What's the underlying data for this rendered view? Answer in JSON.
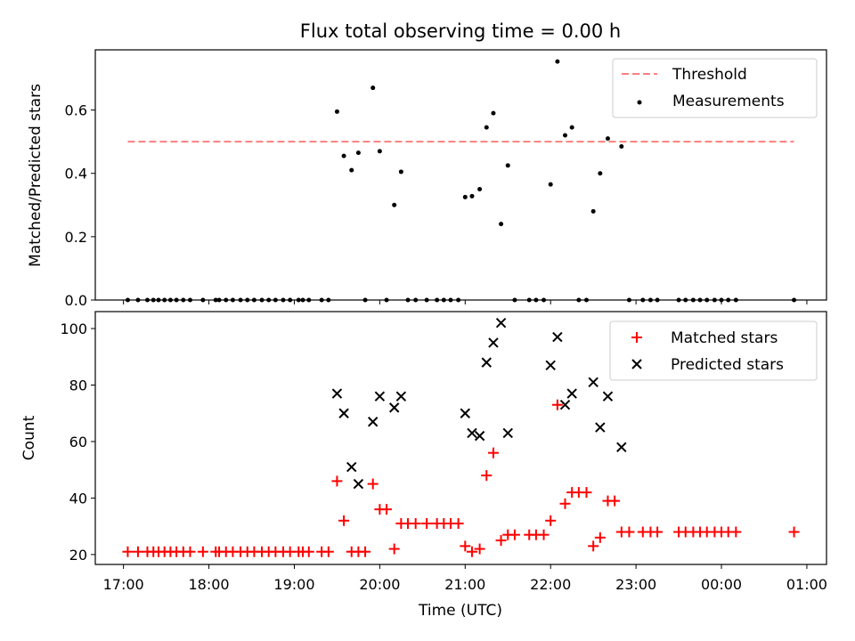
{
  "chart_data": [
    {
      "type": "scatter",
      "title": "Flux total observing time = 0.00 h",
      "ylabel": "Matched/Predicted stars",
      "ylim": [
        0,
        0.79
      ],
      "yticks": [
        0.0,
        0.2,
        0.4,
        0.6
      ],
      "ytick_labels": [
        "0.0",
        "0.2",
        "0.4",
        "0.6"
      ],
      "xlim_hours": [
        16.67,
        25.23
      ],
      "legend": {
        "placement": "top-right",
        "entries": [
          "Threshold",
          "Measurements"
        ]
      },
      "threshold": {
        "name": "Threshold",
        "value": 0.5,
        "x_range": [
          17.05,
          24.85
        ],
        "color": "#ff7f7f"
      },
      "series": [
        {
          "name": "Measurements",
          "color": "#000000",
          "x": [
            17.05,
            17.17,
            17.28,
            17.35,
            17.41,
            17.48,
            17.55,
            17.62,
            17.7,
            17.78,
            17.93,
            18.08,
            18.12,
            18.2,
            18.28,
            18.37,
            18.45,
            18.53,
            18.62,
            18.7,
            18.78,
            18.87,
            18.95,
            19.05,
            19.1,
            19.17,
            19.32,
            19.4,
            19.5,
            19.58,
            19.67,
            19.75,
            19.83,
            19.92,
            20.0,
            20.08,
            20.17,
            20.25,
            20.33,
            20.42,
            20.55,
            20.67,
            20.75,
            20.83,
            20.92,
            21.0,
            21.08,
            21.17,
            21.25,
            21.33,
            21.42,
            21.5,
            21.58,
            21.75,
            21.83,
            21.92,
            22.0,
            22.08,
            22.17,
            22.25,
            22.33,
            22.42,
            22.5,
            22.58,
            22.67,
            22.83,
            22.92,
            23.08,
            23.17,
            23.25,
            23.5,
            23.58,
            23.67,
            23.75,
            23.83,
            23.92,
            24.0,
            24.08,
            24.17,
            24.85
          ],
          "y": [
            0,
            0,
            0,
            0,
            0,
            0,
            0,
            0,
            0,
            0,
            0,
            0,
            0,
            0,
            0,
            0,
            0,
            0,
            0,
            0,
            0,
            0,
            0,
            0,
            0,
            0,
            0,
            0,
            0.595,
            0.455,
            0.41,
            0.465,
            0,
            0.67,
            0.47,
            0,
            0.3,
            0.405,
            0,
            0,
            0,
            0,
            0,
            0,
            0,
            0.325,
            0.328,
            0.35,
            0.545,
            0.59,
            0.24,
            0.425,
            0,
            0,
            0,
            0,
            0.365,
            0.753,
            0.52,
            0.545,
            0,
            0,
            0.28,
            0.4,
            0.51,
            0.485,
            0,
            0,
            0,
            0,
            0,
            0,
            0,
            0,
            0,
            0,
            0,
            0,
            0,
            0
          ]
        }
      ]
    },
    {
      "type": "scatter",
      "xlabel": "Time (UTC)",
      "ylabel": "Count",
      "ylim": [
        16.5,
        106
      ],
      "yticks": [
        20,
        40,
        60,
        80,
        100
      ],
      "ytick_labels": [
        "20",
        "40",
        "60",
        "80",
        "100"
      ],
      "xlim_hours": [
        16.67,
        25.23
      ],
      "xticks_hours": [
        17,
        18,
        19,
        20,
        21,
        22,
        23,
        24,
        25
      ],
      "xtick_labels": [
        "17:00",
        "18:00",
        "19:00",
        "20:00",
        "21:00",
        "22:00",
        "23:00",
        "00:00",
        "01:00"
      ],
      "legend": {
        "placement": "top-right",
        "entries": [
          "Matched stars",
          "Predicted stars"
        ]
      },
      "series": [
        {
          "name": "Matched stars",
          "marker": "plus",
          "color": "#ff0000",
          "x": [
            17.05,
            17.17,
            17.28,
            17.35,
            17.41,
            17.48,
            17.55,
            17.62,
            17.7,
            17.78,
            17.93,
            18.08,
            18.12,
            18.2,
            18.28,
            18.37,
            18.45,
            18.53,
            18.62,
            18.7,
            18.78,
            18.87,
            18.95,
            19.05,
            19.1,
            19.17,
            19.32,
            19.4,
            19.5,
            19.58,
            19.67,
            19.75,
            19.83,
            19.92,
            20.0,
            20.08,
            20.17,
            20.25,
            20.33,
            20.42,
            20.55,
            20.67,
            20.75,
            20.83,
            20.92,
            21.0,
            21.08,
            21.17,
            21.25,
            21.33,
            21.42,
            21.5,
            21.58,
            21.75,
            21.83,
            21.92,
            22.0,
            22.08,
            22.17,
            22.25,
            22.33,
            22.42,
            22.5,
            22.58,
            22.67,
            22.75,
            22.83,
            22.92,
            23.08,
            23.17,
            23.25,
            23.5,
            23.58,
            23.67,
            23.75,
            23.83,
            23.92,
            24.0,
            24.08,
            24.17,
            24.85
          ],
          "y": [
            21,
            21,
            21,
            21,
            21,
            21,
            21,
            21,
            21,
            21,
            21,
            21,
            21,
            21,
            21,
            21,
            21,
            21,
            21,
            21,
            21,
            21,
            21,
            21,
            21,
            21,
            21,
            21,
            46,
            32,
            21,
            21,
            21,
            45,
            36,
            36,
            22,
            31,
            31,
            31,
            31,
            31,
            31,
            31,
            31,
            23,
            21,
            22,
            48,
            56,
            25,
            27,
            27,
            27,
            27,
            27,
            32,
            73,
            38,
            42,
            42,
            42,
            23,
            26,
            39,
            39,
            28,
            28,
            28,
            28,
            28,
            28,
            28,
            28,
            28,
            28,
            28,
            28,
            28,
            28,
            28
          ]
        },
        {
          "name": "Predicted stars",
          "marker": "x",
          "color": "#000000",
          "x": [
            19.5,
            19.58,
            19.67,
            19.75,
            19.92,
            20.0,
            20.17,
            20.25,
            21.0,
            21.08,
            21.17,
            21.25,
            21.33,
            21.42,
            21.5,
            22.0,
            22.08,
            22.17,
            22.25,
            22.5,
            22.58,
            22.67,
            22.83
          ],
          "y": [
            77,
            70,
            51,
            45,
            67,
            76,
            72,
            76,
            70,
            63,
            62,
            88,
            95,
            102,
            63,
            87,
            97,
            73,
            77,
            81,
            65,
            76,
            58
          ]
        }
      ]
    }
  ]
}
